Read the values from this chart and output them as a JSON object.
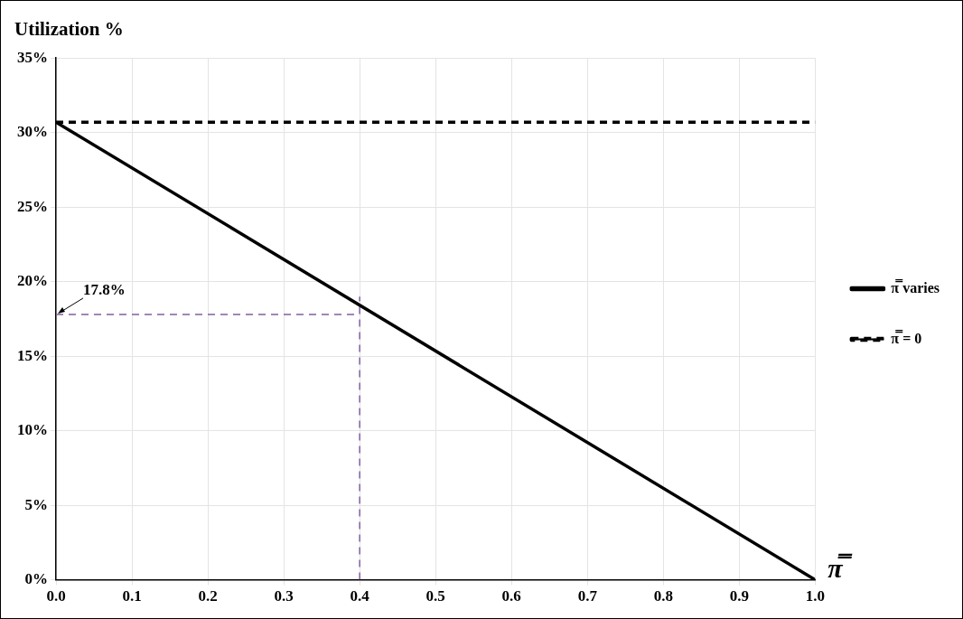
{
  "chart_data": {
    "type": "line",
    "ylabel": "Utilization %",
    "xlabel": "π̿",
    "xlim": [
      0,
      1
    ],
    "xticks": [
      {
        "value": 0,
        "label": "0.0"
      },
      {
        "value": 0.1,
        "label": "0.1"
      },
      {
        "value": 0.2,
        "label": "0.2"
      },
      {
        "value": 0.3,
        "label": "0.3"
      },
      {
        "value": 0.4,
        "label": "0.4"
      },
      {
        "value": 0.5,
        "label": "0.5"
      },
      {
        "value": 0.6,
        "label": "0.6"
      },
      {
        "value": 0.7,
        "label": "0.7"
      },
      {
        "value": 0.8,
        "label": "0.8"
      },
      {
        "value": 0.9,
        "label": "0.9"
      },
      {
        "value": 1,
        "label": "1.0"
      }
    ],
    "ylim": [
      0,
      35
    ],
    "yticks": [
      {
        "value": 0,
        "label": "0%"
      },
      {
        "value": 5,
        "label": "5%"
      },
      {
        "value": 10,
        "label": "10%"
      },
      {
        "value": 15,
        "label": "15%"
      },
      {
        "value": 20,
        "label": "20%"
      },
      {
        "value": 25,
        "label": "25%"
      },
      {
        "value": 30,
        "label": "30%"
      },
      {
        "value": 35,
        "label": "35%"
      }
    ],
    "series": [
      {
        "name": "π̿ varies",
        "color": "#000000",
        "x": [
          0,
          1
        ],
        "values": [
          30.7,
          0
        ],
        "line_style": "solid"
      },
      {
        "name": "π̿ = 0",
        "color": "#000000",
        "x": [
          0,
          1
        ],
        "values": [
          30.7,
          30.7
        ],
        "line_style": "dashed"
      },
      {
        "color": "#8060a0",
        "x": [
          0,
          0.4
        ],
        "values": [
          17.8,
          17.8
        ],
        "line_style": "dashed"
      },
      {
        "color": "#8060a0",
        "x": [
          0.4,
          0.4
        ],
        "values": [
          0,
          19
        ],
        "line_style": "dashed"
      }
    ],
    "annotations": [
      {
        "text": "17.8%",
        "x": 0,
        "y": 17.8
      }
    ],
    "grid": true,
    "legend": "right",
    "marker": "none"
  }
}
